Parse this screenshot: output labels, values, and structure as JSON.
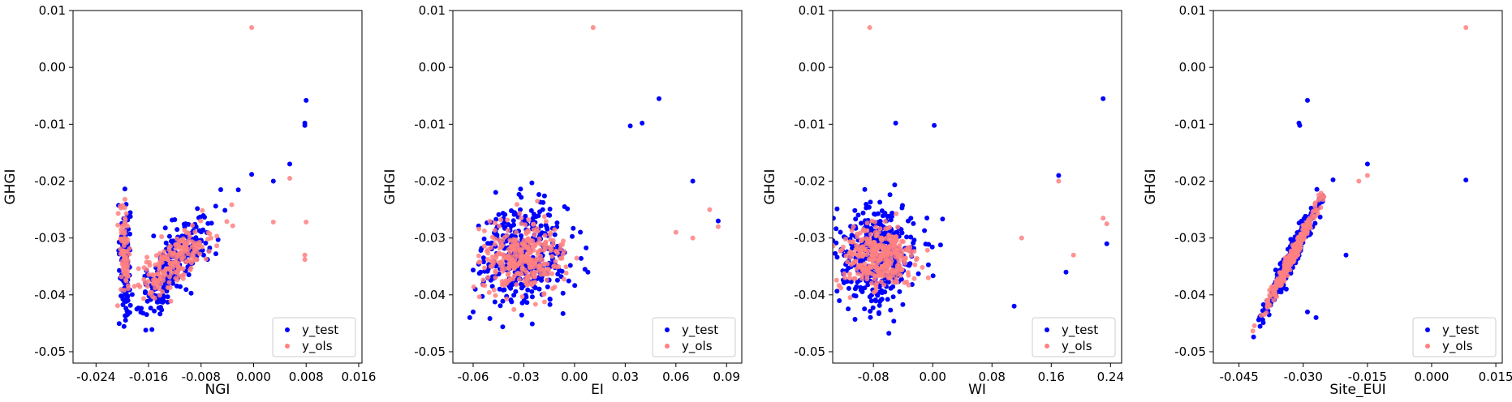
{
  "colors": {
    "test": "#0000ff",
    "ols": "#ff8080",
    "ols_dense": "#ff3030"
  },
  "legend": {
    "placement": "lower-right",
    "labels": [
      "y_test",
      "y_ols"
    ]
  },
  "chart_data": [
    {
      "type": "scatter",
      "xlabel": "NGI",
      "ylabel": "GHGI",
      "xlim": [
        -0.0275,
        0.0165
      ],
      "ylim": [
        -0.052,
        0.01
      ],
      "xticks": [
        "-0.024",
        "-0.016",
        "-0.008",
        "0.000",
        "0.008",
        "0.016"
      ],
      "yticks": [
        "0.01",
        "0.00",
        "-0.01",
        "-0.02",
        "-0.03",
        "-0.04",
        "-0.05"
      ],
      "clusters": [
        {
          "series": "y_test",
          "n": 120,
          "cx": -0.0196,
          "cy": -0.034,
          "sx": 0.0004,
          "sy": 0.005
        },
        {
          "series": "y_test",
          "n": 260,
          "cx": -0.012,
          "cy": -0.0345,
          "sx": 0.003,
          "sy": 0.003,
          "slope": 1.1
        },
        {
          "series": "y_ols",
          "n": 80,
          "cx": -0.0196,
          "cy": -0.032,
          "sx": 0.0004,
          "sy": 0.004
        },
        {
          "series": "y_ols",
          "n": 200,
          "cx": -0.012,
          "cy": -0.034,
          "sx": 0.003,
          "sy": 0.002,
          "slope": 0.9
        }
      ],
      "points": {
        "y_test": [
          [
            0.008,
            -0.0058
          ],
          [
            0.0078,
            -0.0098
          ],
          [
            0.0078,
            -0.0102
          ],
          [
            -0.0003,
            -0.0188
          ],
          [
            0.0055,
            -0.017
          ],
          [
            -0.005,
            -0.0215
          ],
          [
            0.003,
            -0.02
          ]
        ],
        "y_ols": [
          [
            -0.0003,
            0.007
          ],
          [
            0.008,
            -0.0272
          ],
          [
            0.0078,
            -0.033
          ],
          [
            0.0078,
            -0.0338
          ],
          [
            0.0055,
            -0.0195
          ],
          [
            0.003,
            -0.0272
          ]
        ]
      }
    },
    {
      "type": "scatter",
      "xlabel": "EI",
      "ylabel": "GHGI",
      "xlim": [
        -0.072,
        0.099
      ],
      "ylim": [
        -0.052,
        0.01
      ],
      "xticks": [
        "-0.06",
        "-0.03",
        "0.00",
        "0.03",
        "0.06",
        "0.09"
      ],
      "yticks": [
        "0.01",
        "0.00",
        "-0.01",
        "-0.02",
        "-0.03",
        "-0.04",
        "-0.05"
      ],
      "clusters": [
        {
          "series": "y_test",
          "n": 380,
          "cx": -0.03,
          "cy": -0.033,
          "sx": 0.013,
          "sy": 0.0045
        },
        {
          "series": "y_ols",
          "n": 320,
          "cx": -0.03,
          "cy": -0.0335,
          "sx": 0.012,
          "sy": 0.003
        }
      ],
      "points": {
        "y_test": [
          [
            0.05,
            -0.0055
          ],
          [
            0.04,
            -0.0098
          ],
          [
            0.033,
            -0.0103
          ],
          [
            0.07,
            -0.02
          ],
          [
            0.085,
            -0.027
          ],
          [
            -0.062,
            -0.044
          ],
          [
            -0.06,
            -0.043
          ]
        ],
        "y_ols": [
          [
            0.011,
            0.007
          ],
          [
            0.08,
            -0.025
          ],
          [
            0.085,
            -0.028
          ],
          [
            0.06,
            -0.029
          ],
          [
            0.07,
            -0.03
          ]
        ]
      }
    },
    {
      "type": "scatter",
      "xlabel": "WI",
      "ylabel": "GHGI",
      "xlim": [
        -0.135,
        0.255
      ],
      "ylim": [
        -0.052,
        0.01
      ],
      "xticks": [
        "-0.08",
        "0.00",
        "0.08",
        "0.16",
        "0.24"
      ],
      "yticks": [
        "0.01",
        "0.00",
        "-0.01",
        "-0.02",
        "-0.03",
        "-0.04",
        "-0.05"
      ],
      "clusters": [
        {
          "series": "y_test",
          "n": 380,
          "cx": -0.075,
          "cy": -0.033,
          "sx": 0.028,
          "sy": 0.0045
        },
        {
          "series": "y_ols",
          "n": 320,
          "cx": -0.075,
          "cy": -0.0335,
          "sx": 0.026,
          "sy": 0.003
        }
      ],
      "points": {
        "y_test": [
          [
            0.23,
            -0.0055
          ],
          [
            -0.05,
            -0.0098
          ],
          [
            0.002,
            -0.0102
          ],
          [
            0.235,
            -0.031
          ],
          [
            0.17,
            -0.019
          ],
          [
            0.18,
            -0.036
          ],
          [
            0.11,
            -0.042
          ]
        ],
        "y_ols": [
          [
            -0.085,
            0.007
          ],
          [
            0.17,
            -0.02
          ],
          [
            0.23,
            -0.0265
          ],
          [
            0.235,
            -0.0275
          ],
          [
            0.19,
            -0.033
          ],
          [
            0.12,
            -0.03
          ]
        ]
      }
    },
    {
      "type": "scatter",
      "xlabel": "Site_EUI",
      "ylabel": "GHGI",
      "xlim": [
        -0.051,
        0.0165
      ],
      "ylim": [
        -0.052,
        0.01
      ],
      "xticks": [
        "-0.045",
        "-0.030",
        "-0.015",
        "0.000",
        "0.015"
      ],
      "yticks": [
        "0.01",
        "0.00",
        "-0.01",
        "-0.02",
        "-0.03",
        "-0.04",
        "-0.05"
      ],
      "clusters": [
        {
          "series": "y_test",
          "n": 360,
          "cx": -0.0325,
          "cy": -0.033,
          "sx": 0.003,
          "sy": 0.0012,
          "slope": 1.45
        },
        {
          "series": "y_ols",
          "n": 320,
          "cx": -0.0325,
          "cy": -0.033,
          "sx": 0.0028,
          "sy": 0.0008,
          "slope": 1.45
        }
      ],
      "points": {
        "y_test": [
          [
            -0.029,
            -0.0058
          ],
          [
            -0.031,
            -0.0098
          ],
          [
            -0.0308,
            -0.0102
          ],
          [
            0.008,
            -0.0198
          ],
          [
            -0.015,
            -0.017
          ],
          [
            -0.02,
            -0.033
          ],
          [
            -0.027,
            -0.044
          ],
          [
            -0.029,
            -0.043
          ]
        ],
        "y_ols": [
          [
            0.008,
            0.007
          ],
          [
            -0.015,
            -0.019
          ],
          [
            -0.017,
            -0.02
          ]
        ]
      }
    }
  ]
}
